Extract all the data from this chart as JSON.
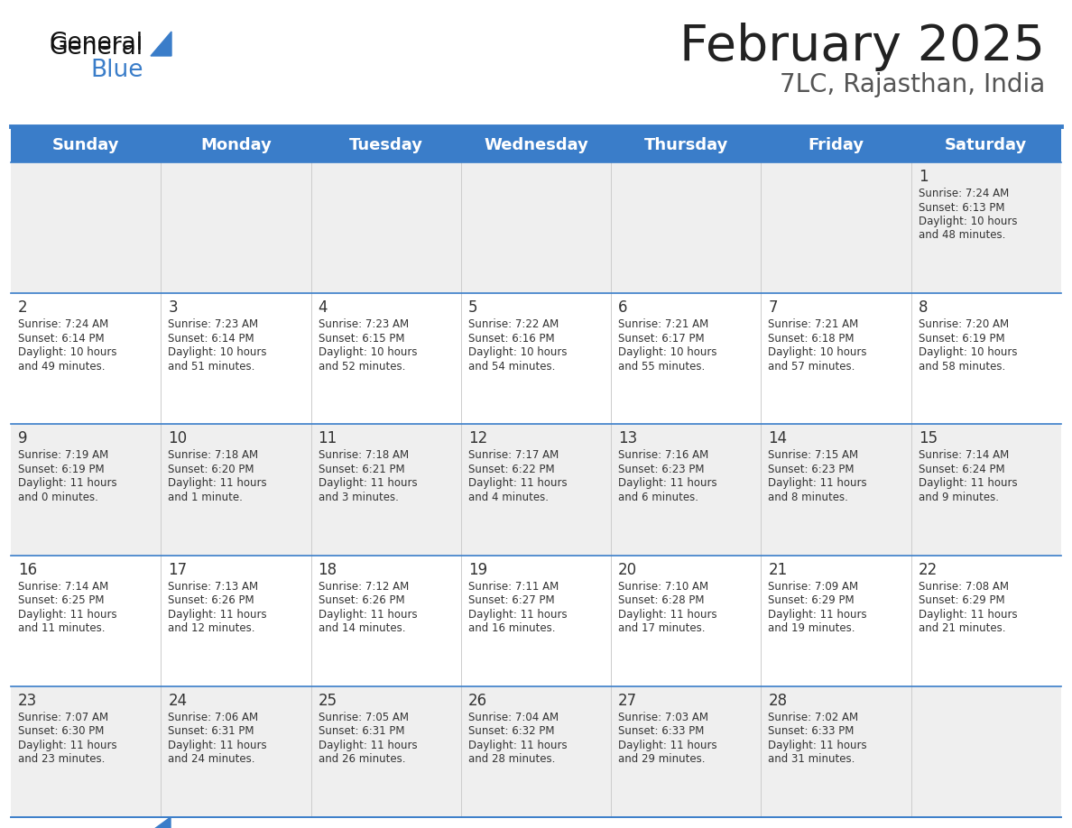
{
  "title": "February 2025",
  "subtitle": "7LC, Rajasthan, India",
  "header_bg": "#3A7DC9",
  "header_text_color": "#FFFFFF",
  "row_bg_odd": "#EFEFEF",
  "row_bg_even": "#FFFFFF",
  "day_headers": [
    "Sunday",
    "Monday",
    "Tuesday",
    "Wednesday",
    "Thursday",
    "Friday",
    "Saturday"
  ],
  "calendar_data": [
    [
      null,
      null,
      null,
      null,
      null,
      null,
      {
        "day": "1",
        "sunrise": "7:24 AM",
        "sunset": "6:13 PM",
        "daylight_h": "10 hours",
        "daylight_m": "and 48 minutes."
      }
    ],
    [
      {
        "day": "2",
        "sunrise": "7:24 AM",
        "sunset": "6:14 PM",
        "daylight_h": "10 hours",
        "daylight_m": "and 49 minutes."
      },
      {
        "day": "3",
        "sunrise": "7:23 AM",
        "sunset": "6:14 PM",
        "daylight_h": "10 hours",
        "daylight_m": "and 51 minutes."
      },
      {
        "day": "4",
        "sunrise": "7:23 AM",
        "sunset": "6:15 PM",
        "daylight_h": "10 hours",
        "daylight_m": "and 52 minutes."
      },
      {
        "day": "5",
        "sunrise": "7:22 AM",
        "sunset": "6:16 PM",
        "daylight_h": "10 hours",
        "daylight_m": "and 54 minutes."
      },
      {
        "day": "6",
        "sunrise": "7:21 AM",
        "sunset": "6:17 PM",
        "daylight_h": "10 hours",
        "daylight_m": "and 55 minutes."
      },
      {
        "day": "7",
        "sunrise": "7:21 AM",
        "sunset": "6:18 PM",
        "daylight_h": "10 hours",
        "daylight_m": "and 57 minutes."
      },
      {
        "day": "8",
        "sunrise": "7:20 AM",
        "sunset": "6:19 PM",
        "daylight_h": "10 hours",
        "daylight_m": "and 58 minutes."
      }
    ],
    [
      {
        "day": "9",
        "sunrise": "7:19 AM",
        "sunset": "6:19 PM",
        "daylight_h": "11 hours",
        "daylight_m": "and 0 minutes."
      },
      {
        "day": "10",
        "sunrise": "7:18 AM",
        "sunset": "6:20 PM",
        "daylight_h": "11 hours",
        "daylight_m": "and 1 minute."
      },
      {
        "day": "11",
        "sunrise": "7:18 AM",
        "sunset": "6:21 PM",
        "daylight_h": "11 hours",
        "daylight_m": "and 3 minutes."
      },
      {
        "day": "12",
        "sunrise": "7:17 AM",
        "sunset": "6:22 PM",
        "daylight_h": "11 hours",
        "daylight_m": "and 4 minutes."
      },
      {
        "day": "13",
        "sunrise": "7:16 AM",
        "sunset": "6:23 PM",
        "daylight_h": "11 hours",
        "daylight_m": "and 6 minutes."
      },
      {
        "day": "14",
        "sunrise": "7:15 AM",
        "sunset": "6:23 PM",
        "daylight_h": "11 hours",
        "daylight_m": "and 8 minutes."
      },
      {
        "day": "15",
        "sunrise": "7:14 AM",
        "sunset": "6:24 PM",
        "daylight_h": "11 hours",
        "daylight_m": "and 9 minutes."
      }
    ],
    [
      {
        "day": "16",
        "sunrise": "7:14 AM",
        "sunset": "6:25 PM",
        "daylight_h": "11 hours",
        "daylight_m": "and 11 minutes."
      },
      {
        "day": "17",
        "sunrise": "7:13 AM",
        "sunset": "6:26 PM",
        "daylight_h": "11 hours",
        "daylight_m": "and 12 minutes."
      },
      {
        "day": "18",
        "sunrise": "7:12 AM",
        "sunset": "6:26 PM",
        "daylight_h": "11 hours",
        "daylight_m": "and 14 minutes."
      },
      {
        "day": "19",
        "sunrise": "7:11 AM",
        "sunset": "6:27 PM",
        "daylight_h": "11 hours",
        "daylight_m": "and 16 minutes."
      },
      {
        "day": "20",
        "sunrise": "7:10 AM",
        "sunset": "6:28 PM",
        "daylight_h": "11 hours",
        "daylight_m": "and 17 minutes."
      },
      {
        "day": "21",
        "sunrise": "7:09 AM",
        "sunset": "6:29 PM",
        "daylight_h": "11 hours",
        "daylight_m": "and 19 minutes."
      },
      {
        "day": "22",
        "sunrise": "7:08 AM",
        "sunset": "6:29 PM",
        "daylight_h": "11 hours",
        "daylight_m": "and 21 minutes."
      }
    ],
    [
      {
        "day": "23",
        "sunrise": "7:07 AM",
        "sunset": "6:30 PM",
        "daylight_h": "11 hours",
        "daylight_m": "and 23 minutes."
      },
      {
        "day": "24",
        "sunrise": "7:06 AM",
        "sunset": "6:31 PM",
        "daylight_h": "11 hours",
        "daylight_m": "and 24 minutes."
      },
      {
        "day": "25",
        "sunrise": "7:05 AM",
        "sunset": "6:31 PM",
        "daylight_h": "11 hours",
        "daylight_m": "and 26 minutes."
      },
      {
        "day": "26",
        "sunrise": "7:04 AM",
        "sunset": "6:32 PM",
        "daylight_h": "11 hours",
        "daylight_m": "and 28 minutes."
      },
      {
        "day": "27",
        "sunrise": "7:03 AM",
        "sunset": "6:33 PM",
        "daylight_h": "11 hours",
        "daylight_m": "and 29 minutes."
      },
      {
        "day": "28",
        "sunrise": "7:02 AM",
        "sunset": "6:33 PM",
        "daylight_h": "11 hours",
        "daylight_m": "and 31 minutes."
      },
      null
    ]
  ],
  "logo_triangle_color": "#3A7DC9",
  "title_color": "#222222",
  "subtitle_color": "#555555",
  "divider_color": "#3A7DC9",
  "cell_text_color": "#333333",
  "day_num_color": "#333333",
  "border_color": "#3A7DC9",
  "figsize": [
    11.88,
    9.18
  ],
  "dpi": 100
}
